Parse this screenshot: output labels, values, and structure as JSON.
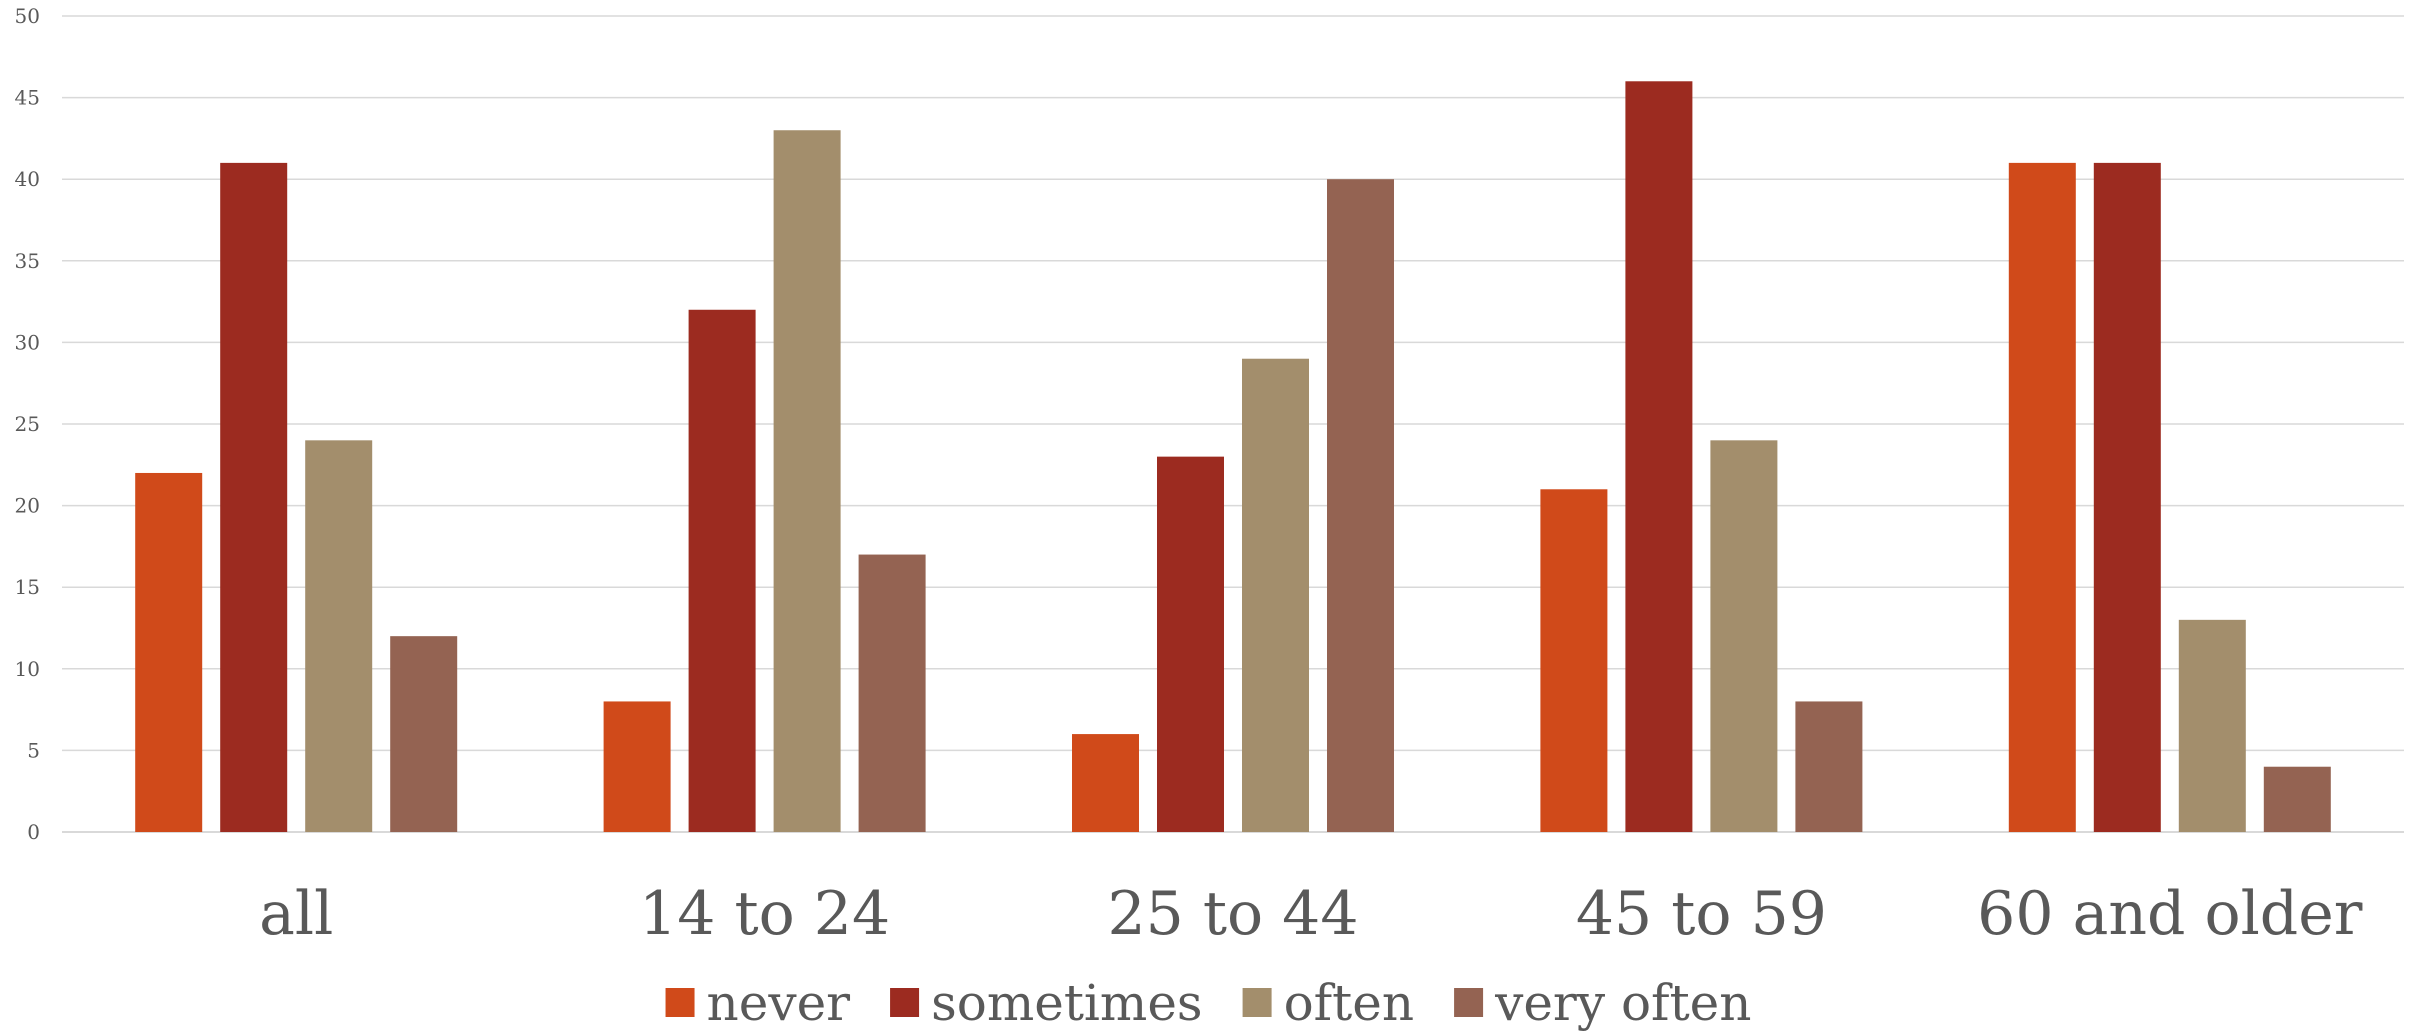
{
  "chart_data": {
    "type": "bar",
    "categories": [
      "all",
      "14 to 24",
      "25 to 44",
      "45 to 59",
      "60 and older"
    ],
    "series": [
      {
        "name": "never",
        "color": "#d04a1a",
        "values": [
          22,
          8,
          6,
          21,
          41
        ]
      },
      {
        "name": "sometimes",
        "color": "#9c2b20",
        "values": [
          41,
          32,
          23,
          46,
          41
        ]
      },
      {
        "name": "often",
        "color": "#a38e6c",
        "values": [
          24,
          43,
          29,
          24,
          13
        ]
      },
      {
        "name": "very often",
        "color": "#946352",
        "values": [
          12,
          17,
          40,
          8,
          4
        ]
      }
    ],
    "ylim": [
      0,
      50
    ],
    "yticks": [
      0,
      5,
      10,
      15,
      20,
      25,
      30,
      35,
      40,
      45,
      50
    ],
    "grid": true,
    "legend": "bottom-center"
  }
}
